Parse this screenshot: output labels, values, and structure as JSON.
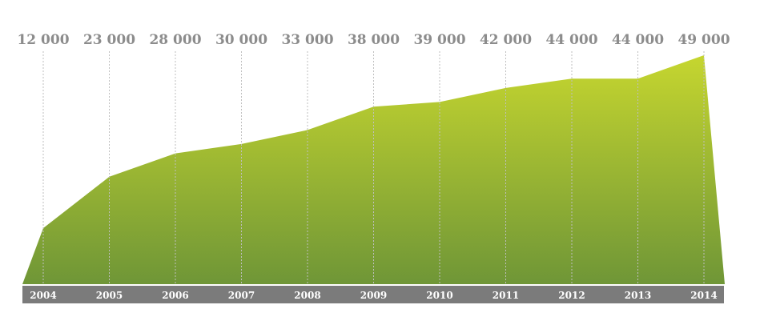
{
  "chart_data": {
    "type": "area",
    "categories": [
      "2004",
      "2005",
      "2006",
      "2007",
      "2008",
      "2009",
      "2010",
      "2011",
      "2012",
      "2013",
      "2014"
    ],
    "values": [
      12000,
      23000,
      28000,
      30000,
      33000,
      38000,
      39000,
      42000,
      44000,
      44000,
      49000
    ],
    "value_labels": [
      "12 000",
      "23 000",
      "28 000",
      "30 000",
      "33 000",
      "38 000",
      "39 000",
      "42 000",
      "44 000",
      "44 000",
      "49 000"
    ],
    "title": "",
    "xlabel": "",
    "ylabel": "",
    "ylim": [
      0,
      49000
    ],
    "grid": "vertical-dashed",
    "legend": "none",
    "colors": {
      "fill_top": "#c6d62f",
      "fill_bottom": "#6f9637",
      "axis_band": "#7b7b7b",
      "value_text": "#8c8c8c",
      "year_text": "#ffffff",
      "grid": "#bfbfbf"
    }
  }
}
